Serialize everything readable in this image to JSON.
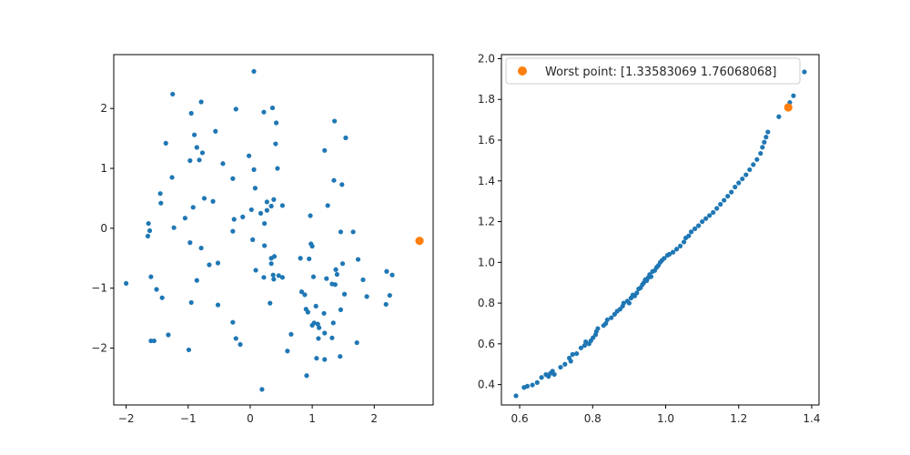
{
  "chart_data": [
    {
      "type": "scatter",
      "xlim": [
        -2.2,
        2.95
      ],
      "ylim": [
        -2.95,
        2.9
      ],
      "xticks": [
        -2,
        -1,
        0,
        1,
        2
      ],
      "yticks": [
        -2,
        -1,
        0,
        1,
        2
      ],
      "grid": false,
      "colors": {
        "points": "#1f77b4",
        "highlight": "#ff7f0e"
      },
      "points": [
        [
          0.06,
          2.62
        ],
        [
          -1.25,
          2.24
        ],
        [
          -0.79,
          2.11
        ],
        [
          0.36,
          2.01
        ],
        [
          -0.23,
          1.99
        ],
        [
          0.22,
          1.94
        ],
        [
          -0.95,
          1.92
        ],
        [
          0.42,
          1.76
        ],
        [
          1.36,
          1.79
        ],
        [
          -0.9,
          1.56
        ],
        [
          1.54,
          1.51
        ],
        [
          -0.56,
          1.62
        ],
        [
          -1.36,
          1.42
        ],
        [
          -0.86,
          1.35
        ],
        [
          0.41,
          1.41
        ],
        [
          -0.77,
          1.26
        ],
        [
          1.2,
          1.3
        ],
        [
          -0.02,
          1.21
        ],
        [
          -0.97,
          1.13
        ],
        [
          -0.82,
          1.14
        ],
        [
          -0.44,
          1.08
        ],
        [
          0.44,
          1.0
        ],
        [
          0.06,
          0.98
        ],
        [
          -1.26,
          0.85
        ],
        [
          -0.28,
          0.83
        ],
        [
          1.35,
          0.8
        ],
        [
          1.48,
          0.73
        ],
        [
          0.08,
          0.67
        ],
        [
          -1.45,
          0.58
        ],
        [
          0.38,
          0.48
        ],
        [
          -0.74,
          0.5
        ],
        [
          -0.6,
          0.45
        ],
        [
          0.27,
          0.44
        ],
        [
          0.34,
          0.37
        ],
        [
          -1.44,
          0.42
        ],
        [
          -0.92,
          0.35
        ],
        [
          0.52,
          0.38
        ],
        [
          1.25,
          0.38
        ],
        [
          0.02,
          0.31
        ],
        [
          0.17,
          0.25
        ],
        [
          0.27,
          0.3
        ],
        [
          -0.26,
          0.15
        ],
        [
          -0.12,
          0.19
        ],
        [
          0.97,
          0.21
        ],
        [
          -1.05,
          0.17
        ],
        [
          -1.64,
          0.08
        ],
        [
          0.23,
          0.08
        ],
        [
          -1.23,
          0.01
        ],
        [
          -1.62,
          -0.04
        ],
        [
          -0.28,
          -0.05
        ],
        [
          1.46,
          -0.06
        ],
        [
          1.66,
          -0.06
        ],
        [
          -1.65,
          -0.13
        ],
        [
          0.04,
          -0.19
        ],
        [
          -0.97,
          -0.24
        ],
        [
          0.98,
          -0.26
        ],
        [
          0.23,
          -0.29
        ],
        [
          1.0,
          -0.3
        ],
        [
          -0.79,
          -0.33
        ],
        [
          0.39,
          -0.47
        ],
        [
          0.81,
          -0.5
        ],
        [
          0.34,
          -0.5
        ],
        [
          1.74,
          -0.52
        ],
        [
          0.95,
          -0.51
        ],
        [
          0.34,
          -0.59
        ],
        [
          1.49,
          -0.59
        ],
        [
          -0.52,
          -0.58
        ],
        [
          -0.66,
          -0.61
        ],
        [
          0.09,
          -0.7
        ],
        [
          1.38,
          -0.69
        ],
        [
          0.37,
          -0.78
        ],
        [
          1.4,
          -0.77
        ],
        [
          2.2,
          -0.72
        ],
        [
          0.22,
          -0.82
        ],
        [
          0.46,
          -0.79
        ],
        [
          0.52,
          -0.82
        ],
        [
          -1.6,
          -0.81
        ],
        [
          -0.86,
          -0.87
        ],
        [
          0.38,
          -0.85
        ],
        [
          1.02,
          -0.81
        ],
        [
          1.23,
          -0.84
        ],
        [
          1.82,
          -0.86
        ],
        [
          2.29,
          -0.78
        ],
        [
          -2.0,
          -0.92
        ],
        [
          1.32,
          -0.93
        ],
        [
          1.37,
          -0.94
        ],
        [
          -1.51,
          -1.02
        ],
        [
          0.83,
          -1.06
        ],
        [
          0.88,
          -1.11
        ],
        [
          -1.42,
          -1.16
        ],
        [
          1.52,
          -1.1
        ],
        [
          1.88,
          -1.14
        ],
        [
          2.25,
          -1.12
        ],
        [
          -0.95,
          -1.24
        ],
        [
          0.32,
          -1.25
        ],
        [
          2.19,
          -1.27
        ],
        [
          -0.52,
          -1.28
        ],
        [
          1.06,
          -1.3
        ],
        [
          0.9,
          -1.35
        ],
        [
          1.46,
          -1.36
        ],
        [
          1.19,
          -1.42
        ],
        [
          0.93,
          -1.4
        ],
        [
          1.03,
          -1.58
        ],
        [
          -0.28,
          -1.57
        ],
        [
          1.09,
          -1.6
        ],
        [
          1.11,
          -1.66
        ],
        [
          1.0,
          -1.62
        ],
        [
          1.34,
          -1.58
        ],
        [
          0.66,
          -1.77
        ],
        [
          -1.32,
          -1.78
        ],
        [
          1.2,
          -1.75
        ],
        [
          -0.23,
          -1.84
        ],
        [
          -1.55,
          -1.88
        ],
        [
          -1.6,
          -1.88
        ],
        [
          -0.16,
          -1.94
        ],
        [
          1.1,
          -1.84
        ],
        [
          1.32,
          -1.83
        ],
        [
          1.72,
          -1.91
        ],
        [
          -0.99,
          -2.03
        ],
        [
          0.6,
          -2.05
        ],
        [
          1.07,
          -2.17
        ],
        [
          1.45,
          -2.14
        ],
        [
          1.2,
          -2.19
        ],
        [
          0.91,
          -2.46
        ],
        [
          0.19,
          -2.69
        ]
      ],
      "highlight_point": [
        2.73,
        -0.21
      ]
    },
    {
      "type": "scatter",
      "xlim": [
        0.55,
        1.42
      ],
      "ylim": [
        0.3,
        2.02
      ],
      "xticks": [
        0.6,
        0.8,
        1.0,
        1.2,
        1.4
      ],
      "yticks": [
        0.4,
        0.6,
        0.8,
        1.0,
        1.2,
        1.4,
        1.6,
        1.8,
        2.0
      ],
      "grid": false,
      "legend": {
        "placement": "top-left",
        "label": "Worst point: [1.33583069 1.76068068]"
      },
      "colors": {
        "points": "#1f77b4",
        "highlight": "#ff7f0e"
      },
      "points": [
        [
          0.59,
          0.345
        ],
        [
          0.612,
          0.386
        ],
        [
          0.621,
          0.392
        ],
        [
          0.635,
          0.398
        ],
        [
          0.648,
          0.41
        ],
        [
          0.66,
          0.435
        ],
        [
          0.672,
          0.449
        ],
        [
          0.679,
          0.44
        ],
        [
          0.684,
          0.455
        ],
        [
          0.69,
          0.466
        ],
        [
          0.695,
          0.45
        ],
        [
          0.712,
          0.485
        ],
        [
          0.724,
          0.5
        ],
        [
          0.736,
          0.53
        ],
        [
          0.74,
          0.515
        ],
        [
          0.745,
          0.548
        ],
        [
          0.756,
          0.552
        ],
        [
          0.768,
          0.58
        ],
        [
          0.778,
          0.592
        ],
        [
          0.781,
          0.61
        ],
        [
          0.79,
          0.6
        ],
        [
          0.795,
          0.615
        ],
        [
          0.801,
          0.63
        ],
        [
          0.808,
          0.645
        ],
        [
          0.81,
          0.66
        ],
        [
          0.814,
          0.675
        ],
        [
          0.83,
          0.69
        ],
        [
          0.836,
          0.7
        ],
        [
          0.84,
          0.718
        ],
        [
          0.851,
          0.728
        ],
        [
          0.86,
          0.745
        ],
        [
          0.867,
          0.76
        ],
        [
          0.875,
          0.77
        ],
        [
          0.882,
          0.785
        ],
        [
          0.885,
          0.8
        ],
        [
          0.895,
          0.81
        ],
        [
          0.9,
          0.8
        ],
        [
          0.905,
          0.825
        ],
        [
          0.91,
          0.84
        ],
        [
          0.915,
          0.835
        ],
        [
          0.921,
          0.85
        ],
        [
          0.926,
          0.87
        ],
        [
          0.931,
          0.875
        ],
        [
          0.936,
          0.89
        ],
        [
          0.94,
          0.9
        ],
        [
          0.944,
          0.915
        ],
        [
          0.948,
          0.91
        ],
        [
          0.952,
          0.925
        ],
        [
          0.956,
          0.94
        ],
        [
          0.96,
          0.93
        ],
        [
          0.964,
          0.955
        ],
        [
          0.97,
          0.96
        ],
        [
          0.975,
          0.975
        ],
        [
          0.98,
          0.985
        ],
        [
          0.985,
          1.0
        ],
        [
          0.99,
          1.01
        ],
        [
          0.996,
          1.02
        ],
        [
          1.005,
          1.035
        ],
        [
          1.01,
          1.04
        ],
        [
          1.02,
          1.05
        ],
        [
          1.03,
          1.065
        ],
        [
          1.04,
          1.08
        ],
        [
          1.05,
          1.1
        ],
        [
          1.055,
          1.12
        ],
        [
          1.063,
          1.13
        ],
        [
          1.07,
          1.15
        ],
        [
          1.08,
          1.165
        ],
        [
          1.09,
          1.18
        ],
        [
          1.1,
          1.2
        ],
        [
          1.11,
          1.215
        ],
        [
          1.12,
          1.23
        ],
        [
          1.13,
          1.245
        ],
        [
          1.14,
          1.265
        ],
        [
          1.15,
          1.285
        ],
        [
          1.16,
          1.305
        ],
        [
          1.17,
          1.325
        ],
        [
          1.18,
          1.345
        ],
        [
          1.19,
          1.37
        ],
        [
          1.2,
          1.39
        ],
        [
          1.21,
          1.41
        ],
        [
          1.22,
          1.43
        ],
        [
          1.23,
          1.455
        ],
        [
          1.24,
          1.48
        ],
        [
          1.25,
          1.505
        ],
        [
          1.26,
          1.535
        ],
        [
          1.265,
          1.565
        ],
        [
          1.27,
          1.59
        ],
        [
          1.275,
          1.615
        ],
        [
          1.28,
          1.64
        ],
        [
          1.31,
          1.715
        ],
        [
          1.34,
          1.785
        ],
        [
          1.35,
          1.818
        ],
        [
          1.38,
          1.935
        ]
      ],
      "highlight_point": [
        1.33583069,
        1.76068068
      ]
    }
  ]
}
